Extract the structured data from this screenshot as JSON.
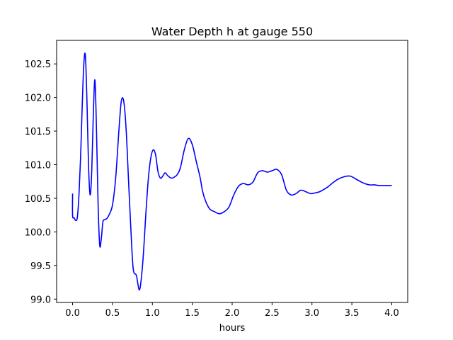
{
  "chart_data": {
    "type": "line",
    "title": "Water Depth h at gauge 550",
    "xlabel": "hours",
    "ylabel": "",
    "xlim": [
      -0.2,
      4.2
    ],
    "ylim": [
      98.95,
      102.85
    ],
    "xticks": [
      0.0,
      0.5,
      1.0,
      1.5,
      2.0,
      2.5,
      3.0,
      3.5,
      4.0
    ],
    "xtick_labels": [
      "0.0",
      "0.5",
      "1.0",
      "1.5",
      "2.0",
      "2.5",
      "3.0",
      "3.5",
      "4.0"
    ],
    "yticks": [
      99.0,
      99.5,
      100.0,
      100.5,
      101.0,
      101.5,
      102.0,
      102.5
    ],
    "ytick_labels": [
      "99.0",
      "99.5",
      "100.0",
      "100.5",
      "101.0",
      "101.5",
      "102.0",
      "102.5"
    ],
    "grid": false,
    "series": [
      {
        "color": "#0000ff",
        "x": [
          0.0,
          0.0,
          0.02,
          0.04,
          0.06,
          0.08,
          0.1,
          0.12,
          0.14,
          0.16,
          0.18,
          0.2,
          0.22,
          0.24,
          0.26,
          0.28,
          0.3,
          0.32,
          0.34,
          0.36,
          0.38,
          0.4,
          0.43,
          0.46,
          0.5,
          0.54,
          0.58,
          0.61,
          0.64,
          0.67,
          0.7,
          0.73,
          0.76,
          0.8,
          0.84,
          0.88,
          0.92,
          0.95,
          0.98,
          1.01,
          1.04,
          1.07,
          1.1,
          1.13,
          1.16,
          1.19,
          1.22,
          1.25,
          1.28,
          1.31,
          1.35,
          1.4,
          1.45,
          1.5,
          1.55,
          1.6,
          1.63,
          1.67,
          1.72,
          1.78,
          1.84,
          1.9,
          1.96,
          2.02,
          2.08,
          2.14,
          2.2,
          2.26,
          2.32,
          2.38,
          2.44,
          2.5,
          2.56,
          2.62,
          2.68,
          2.74,
          2.8,
          2.86,
          2.92,
          2.98,
          3.04,
          3.1,
          3.16,
          3.2,
          3.25,
          3.32,
          3.4,
          3.48,
          3.56,
          3.64,
          3.72,
          3.78,
          3.84,
          3.9,
          3.95,
          4.0
        ],
        "y": [
          100.57,
          100.24,
          100.21,
          100.17,
          100.22,
          100.55,
          101.1,
          101.85,
          102.48,
          102.63,
          101.95,
          100.98,
          100.55,
          100.9,
          101.75,
          102.26,
          101.5,
          100.4,
          99.8,
          99.9,
          100.15,
          100.18,
          100.2,
          100.26,
          100.4,
          100.8,
          101.5,
          101.94,
          101.95,
          101.55,
          100.8,
          100.05,
          99.45,
          99.35,
          99.14,
          99.55,
          100.3,
          100.8,
          101.1,
          101.22,
          101.15,
          100.9,
          100.8,
          100.83,
          100.88,
          100.84,
          100.81,
          100.8,
          100.82,
          100.85,
          100.95,
          101.22,
          101.39,
          101.3,
          101.05,
          100.8,
          100.6,
          100.45,
          100.34,
          100.3,
          100.27,
          100.3,
          100.37,
          100.55,
          100.68,
          100.72,
          100.7,
          100.74,
          100.88,
          100.91,
          100.89,
          100.91,
          100.93,
          100.85,
          100.62,
          100.55,
          100.57,
          100.62,
          100.6,
          100.57,
          100.58,
          100.6,
          100.64,
          100.67,
          100.72,
          100.78,
          100.82,
          100.83,
          100.78,
          100.73,
          100.7,
          100.7,
          100.69,
          100.69,
          100.69,
          100.69
        ]
      }
    ]
  }
}
